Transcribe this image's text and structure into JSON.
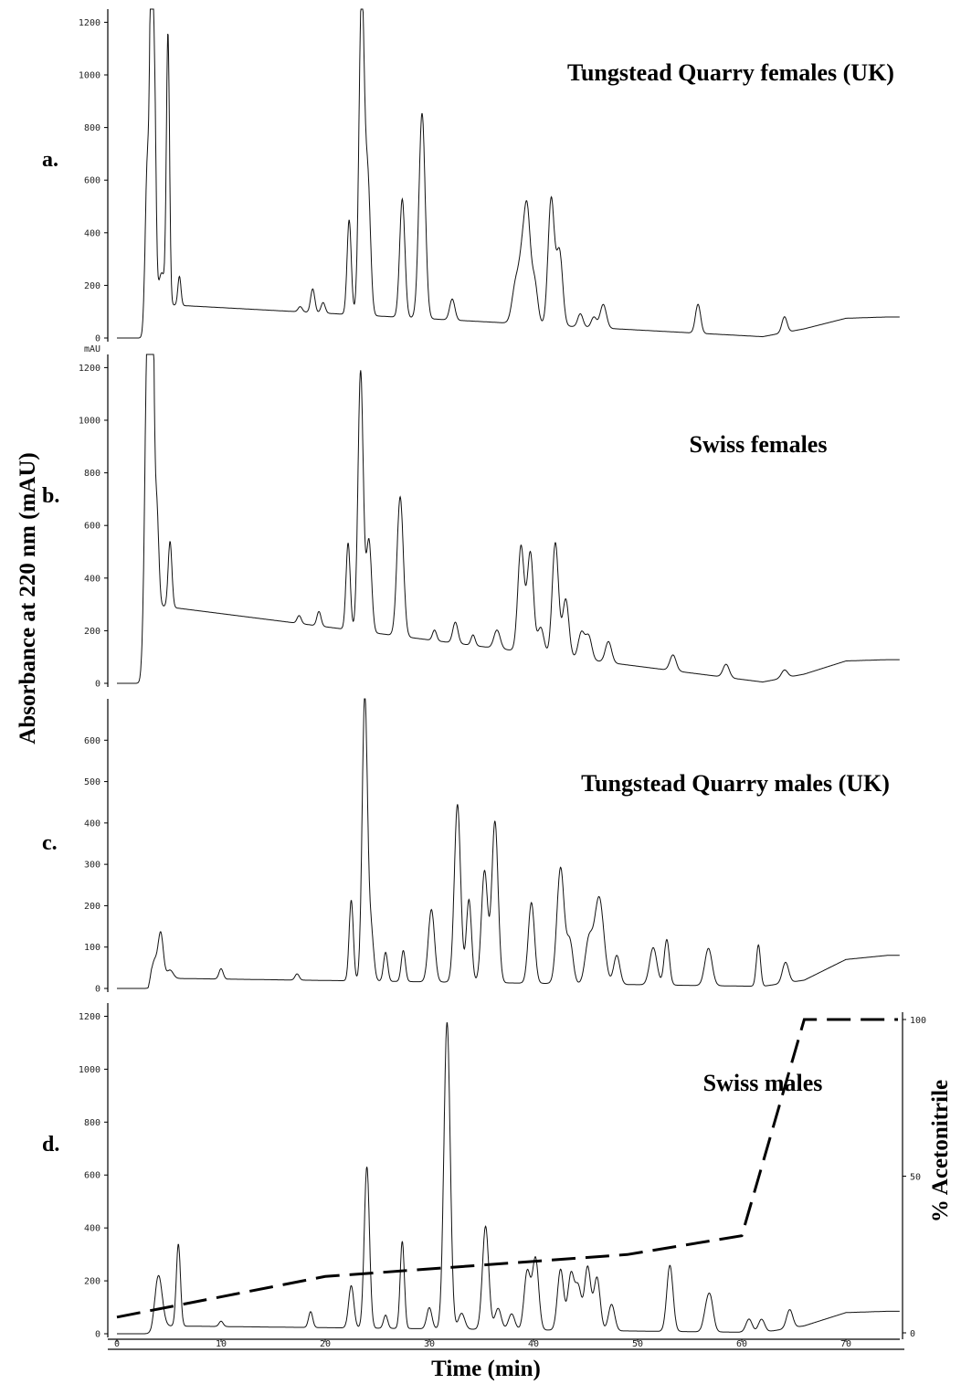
{
  "figure": {
    "y_axis_label": "Absorbance at 220 nm (mAU)",
    "x_axis_label": "Time (min)",
    "right_axis_label": "% Acetonitrile"
  },
  "chart_data": [
    {
      "type": "line",
      "panel_letter": "a.",
      "title": "Tungstead Quarry females (UK)",
      "ylim": [
        0,
        1250
      ],
      "yticks": [
        "1200",
        "1000",
        "800",
        "600",
        "400",
        "200",
        "0"
      ],
      "ytick_values": [
        1200,
        1000,
        800,
        600,
        400,
        200,
        0
      ],
      "baseline": {
        "x": [
          0,
          2.7,
          3.2,
          62,
          66,
          70,
          74
        ],
        "y": [
          0,
          0,
          130,
          5,
          35,
          75,
          80
        ]
      },
      "peaks": [
        {
          "rt": 2.9,
          "h": 600,
          "w": 0.2
        },
        {
          "rt": 3.3,
          "h": 1240,
          "w": 0.15
        },
        {
          "rt": 3.6,
          "h": 800,
          "w": 0.15
        },
        {
          "rt": 4.3,
          "h": 120,
          "w": 0.3
        },
        {
          "rt": 4.9,
          "h": 1020,
          "w": 0.15
        },
        {
          "rt": 6,
          "h": 110,
          "w": 0.15
        },
        {
          "rt": 17.6,
          "h": 20,
          "w": 0.2
        },
        {
          "rt": 18.8,
          "h": 90,
          "w": 0.2
        },
        {
          "rt": 19.8,
          "h": 40,
          "w": 0.2
        },
        {
          "rt": 22.3,
          "h": 360,
          "w": 0.2
        },
        {
          "rt": 23.5,
          "h": 1240,
          "w": 0.25
        },
        {
          "rt": 24.1,
          "h": 500,
          "w": 0.25
        },
        {
          "rt": 27.4,
          "h": 450,
          "w": 0.25
        },
        {
          "rt": 29.3,
          "h": 780,
          "w": 0.3
        },
        {
          "rt": 32.2,
          "h": 80,
          "w": 0.25
        },
        {
          "rt": 38.3,
          "h": 150,
          "w": 0.35
        },
        {
          "rt": 38.9,
          "h": 200,
          "w": 0.3
        },
        {
          "rt": 39.4,
          "h": 400,
          "w": 0.3
        },
        {
          "rt": 40.1,
          "h": 160,
          "w": 0.3
        },
        {
          "rt": 41.7,
          "h": 480,
          "w": 0.3
        },
        {
          "rt": 42.5,
          "h": 280,
          "w": 0.3
        },
        {
          "rt": 44.5,
          "h": 50,
          "w": 0.25
        },
        {
          "rt": 45.8,
          "h": 40,
          "w": 0.25
        },
        {
          "rt": 46.7,
          "h": 90,
          "w": 0.3
        },
        {
          "rt": 55.8,
          "h": 110,
          "w": 0.25
        },
        {
          "rt": 64.1,
          "h": 60,
          "w": 0.25
        }
      ]
    },
    {
      "type": "line",
      "panel_letter": "b.",
      "title": "Swiss females",
      "y_unit_label": "mAU",
      "ylim": [
        0,
        1250
      ],
      "yticks": [
        "1200",
        "1000",
        "800",
        "600",
        "400",
        "200",
        "0"
      ],
      "ytick_values": [
        1200,
        1000,
        800,
        600,
        400,
        200,
        0
      ],
      "baseline": {
        "x": [
          0,
          2.6,
          3,
          62,
          66,
          70,
          74
        ],
        "y": [
          0,
          0,
          300,
          5,
          35,
          85,
          90
        ]
      },
      "peaks": [
        {
          "rt": 2.9,
          "h": 1100,
          "w": 0.25
        },
        {
          "rt": 3.4,
          "h": 1240,
          "w": 0.15
        },
        {
          "rt": 3.8,
          "h": 400,
          "w": 0.2
        },
        {
          "rt": 5.1,
          "h": 250,
          "w": 0.18
        },
        {
          "rt": 17.5,
          "h": 30,
          "w": 0.2
        },
        {
          "rt": 19.4,
          "h": 55,
          "w": 0.2
        },
        {
          "rt": 22.2,
          "h": 330,
          "w": 0.2
        },
        {
          "rt": 23.4,
          "h": 990,
          "w": 0.25
        },
        {
          "rt": 24.2,
          "h": 350,
          "w": 0.25
        },
        {
          "rt": 27.2,
          "h": 530,
          "w": 0.3
        },
        {
          "rt": 30.5,
          "h": 40,
          "w": 0.2
        },
        {
          "rt": 32.5,
          "h": 80,
          "w": 0.25
        },
        {
          "rt": 34.2,
          "h": 40,
          "w": 0.2
        },
        {
          "rt": 36.5,
          "h": 70,
          "w": 0.3
        },
        {
          "rt": 38.8,
          "h": 400,
          "w": 0.3
        },
        {
          "rt": 39.7,
          "h": 380,
          "w": 0.3
        },
        {
          "rt": 40.7,
          "h": 100,
          "w": 0.3
        },
        {
          "rt": 42.1,
          "h": 430,
          "w": 0.3
        },
        {
          "rt": 43.1,
          "h": 220,
          "w": 0.3
        },
        {
          "rt": 44.6,
          "h": 100,
          "w": 0.3
        },
        {
          "rt": 45.3,
          "h": 90,
          "w": 0.3
        },
        {
          "rt": 47.2,
          "h": 80,
          "w": 0.3
        },
        {
          "rt": 53.4,
          "h": 60,
          "w": 0.3
        },
        {
          "rt": 58.5,
          "h": 50,
          "w": 0.3
        },
        {
          "rt": 64.1,
          "h": 30,
          "w": 0.3
        }
      ]
    },
    {
      "type": "line",
      "panel_letter": "c.",
      "title": "Tungstead Quarry males (UK)",
      "ylim": [
        0,
        700
      ],
      "yticks": [
        "600",
        "500",
        "400",
        "300",
        "200",
        "100",
        "0"
      ],
      "ytick_values": [
        600,
        500,
        400,
        300,
        200,
        100,
        0
      ],
      "baseline": {
        "x": [
          0,
          3,
          3.3,
          62,
          66,
          70,
          74
        ],
        "y": [
          0,
          0,
          25,
          5,
          20,
          70,
          80
        ]
      },
      "peaks": [
        {
          "rt": 3.6,
          "h": 40,
          "w": 0.25
        },
        {
          "rt": 4.2,
          "h": 110,
          "w": 0.25
        },
        {
          "rt": 5.1,
          "h": 20,
          "w": 0.3
        },
        {
          "rt": 10,
          "h": 25,
          "w": 0.2
        },
        {
          "rt": 17.3,
          "h": 15,
          "w": 0.2
        },
        {
          "rt": 22.5,
          "h": 195,
          "w": 0.2
        },
        {
          "rt": 23.8,
          "h": 690,
          "w": 0.25
        },
        {
          "rt": 24.4,
          "h": 120,
          "w": 0.25
        },
        {
          "rt": 25.8,
          "h": 70,
          "w": 0.2
        },
        {
          "rt": 27.5,
          "h": 75,
          "w": 0.2
        },
        {
          "rt": 30.2,
          "h": 175,
          "w": 0.3
        },
        {
          "rt": 32.7,
          "h": 430,
          "w": 0.3
        },
        {
          "rt": 33.8,
          "h": 200,
          "w": 0.25
        },
        {
          "rt": 35.3,
          "h": 270,
          "w": 0.3
        },
        {
          "rt": 36.3,
          "h": 390,
          "w": 0.3
        },
        {
          "rt": 39.8,
          "h": 195,
          "w": 0.3
        },
        {
          "rt": 42.6,
          "h": 280,
          "w": 0.35
        },
        {
          "rt": 43.5,
          "h": 100,
          "w": 0.3
        },
        {
          "rt": 45.3,
          "h": 100,
          "w": 0.35
        },
        {
          "rt": 46.3,
          "h": 210,
          "w": 0.45
        },
        {
          "rt": 48,
          "h": 70,
          "w": 0.3
        },
        {
          "rt": 51.5,
          "h": 90,
          "w": 0.35
        },
        {
          "rt": 52.8,
          "h": 110,
          "w": 0.25
        },
        {
          "rt": 56.8,
          "h": 90,
          "w": 0.35
        },
        {
          "rt": 61.6,
          "h": 100,
          "w": 0.2
        },
        {
          "rt": 64.2,
          "h": 50,
          "w": 0.3
        }
      ]
    },
    {
      "type": "line",
      "panel_letter": "d.",
      "title": "Swiss males",
      "ylim": [
        0,
        1250
      ],
      "yticks": [
        "1200",
        "1000",
        "800",
        "600",
        "400",
        "200",
        "0"
      ],
      "ytick_values": [
        1200,
        1000,
        800,
        600,
        400,
        200,
        0
      ],
      "xlim": [
        0,
        75
      ],
      "xticks": [
        "0",
        "10",
        "20",
        "30",
        "40",
        "50",
        "60",
        "70"
      ],
      "xtick_values": [
        0,
        10,
        20,
        30,
        40,
        50,
        60,
        70
      ],
      "baseline": {
        "x": [
          0,
          3.3,
          3.8,
          62,
          66,
          70,
          74
        ],
        "y": [
          0,
          0,
          30,
          5,
          30,
          80,
          85
        ]
      },
      "peaks": [
        {
          "rt": 4,
          "h": 190,
          "w": 0.35
        },
        {
          "rt": 5.9,
          "h": 310,
          "w": 0.2
        },
        {
          "rt": 10,
          "h": 20,
          "w": 0.2
        },
        {
          "rt": 18.6,
          "h": 60,
          "w": 0.2
        },
        {
          "rt": 22.5,
          "h": 160,
          "w": 0.25
        },
        {
          "rt": 24,
          "h": 610,
          "w": 0.25
        },
        {
          "rt": 25.8,
          "h": 50,
          "w": 0.2
        },
        {
          "rt": 27.4,
          "h": 330,
          "w": 0.2
        },
        {
          "rt": 30,
          "h": 80,
          "w": 0.25
        },
        {
          "rt": 31.7,
          "h": 1160,
          "w": 0.3
        },
        {
          "rt": 33.1,
          "h": 60,
          "w": 0.3
        },
        {
          "rt": 35.4,
          "h": 390,
          "w": 0.3
        },
        {
          "rt": 36.6,
          "h": 80,
          "w": 0.3
        },
        {
          "rt": 37.9,
          "h": 60,
          "w": 0.3
        },
        {
          "rt": 39.4,
          "h": 220,
          "w": 0.3
        },
        {
          "rt": 40.2,
          "h": 270,
          "w": 0.3
        },
        {
          "rt": 42.6,
          "h": 230,
          "w": 0.3
        },
        {
          "rt": 43.6,
          "h": 210,
          "w": 0.3
        },
        {
          "rt": 44.3,
          "h": 160,
          "w": 0.3
        },
        {
          "rt": 45.2,
          "h": 240,
          "w": 0.3
        },
        {
          "rt": 46.1,
          "h": 200,
          "w": 0.3
        },
        {
          "rt": 47.5,
          "h": 100,
          "w": 0.3
        },
        {
          "rt": 53.1,
          "h": 250,
          "w": 0.3
        },
        {
          "rt": 56.6,
          "h": 70,
          "w": 0.3
        },
        {
          "rt": 57,
          "h": 110,
          "w": 0.3
        },
        {
          "rt": 60.7,
          "h": 50,
          "w": 0.3
        },
        {
          "rt": 61.9,
          "h": 50,
          "w": 0.3
        },
        {
          "rt": 64.6,
          "h": 70,
          "w": 0.3
        }
      ],
      "acetonitrile_gradient": {
        "name": "% Acetonitrile",
        "ylim": [
          0,
          100
        ],
        "yticks": [
          "100",
          "50",
          "0"
        ],
        "ytick_values": [
          100,
          50,
          0
        ],
        "x": [
          0,
          20,
          49,
          60,
          66,
          75
        ],
        "y": [
          5,
          18,
          25,
          31,
          100,
          100
        ]
      }
    }
  ]
}
